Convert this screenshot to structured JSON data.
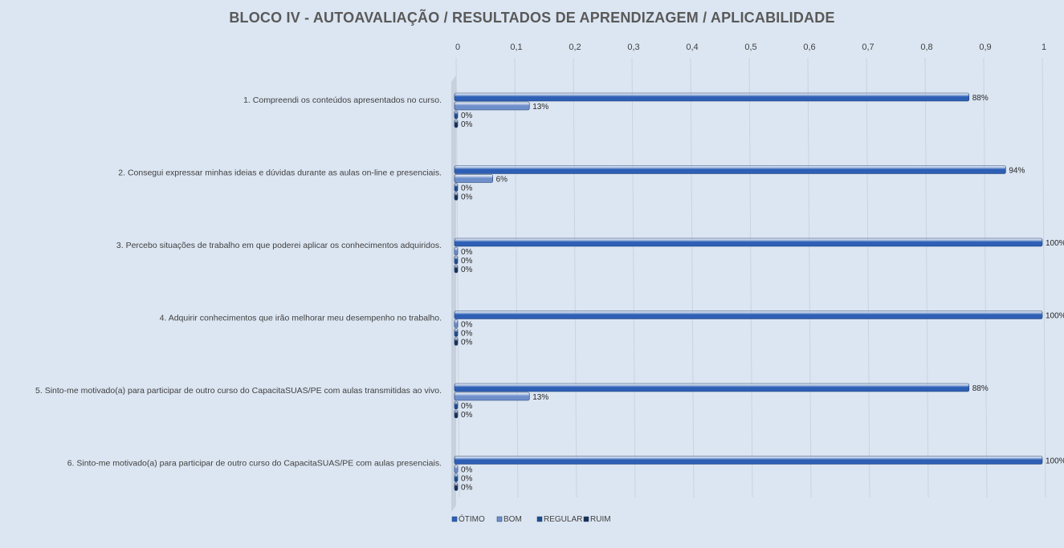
{
  "chart_data": {
    "type": "bar",
    "orientation": "horizontal",
    "title": "BLOCO IV - AUTOAVALIAÇÃO / RESULTADOS  DE APRENDIZAGEM / APLICABILIDADE",
    "xlim": [
      0,
      1
    ],
    "x_ticks": [
      "0",
      "0,1",
      "0,2",
      "0,3",
      "0,4",
      "0,5",
      "0,6",
      "0,7",
      "0,8",
      "0,9",
      "1"
    ],
    "x_axis_position": "top",
    "grid": true,
    "legend_position": "bottom-left",
    "categories": [
      "1. Compreendi os conteúdos apresentados no curso.",
      "2. Consegui expressar minhas ideias e dúvidas durante as aulas on-line e presenciais.",
      "3. Percebo situações de trabalho em que poderei aplicar os conhecimentos adquiridos.",
      "4. Adquirir conhecimentos que irão melhorar meu desempenho no trabalho.",
      "5. Sinto-me motivado(a) para participar de outro curso do CapacitaSUAS/PE com aulas transmitidas ao vivo.",
      "6. Sinto-me motivado(a) para participar de outro curso do CapacitaSUAS/PE com aulas presenciais."
    ],
    "series": [
      {
        "name": "ÓTIMO",
        "color": "#2e5fb5",
        "values": [
          0.875,
          0.9375,
          1.0,
          1.0,
          0.875,
          1.0
        ],
        "labels": [
          "88%",
          "94%",
          "100%",
          "100%",
          "88%",
          "100%"
        ]
      },
      {
        "name": "BOM",
        "color": "#6f8fcb",
        "values": [
          0.125,
          0.0625,
          0,
          0,
          0.125,
          0
        ],
        "labels": [
          "13%",
          "6%",
          "0%",
          "0%",
          "13%",
          "0%"
        ]
      },
      {
        "name": "REGULAR",
        "color": "#1f4e8f",
        "values": [
          0,
          0,
          0,
          0,
          0,
          0
        ],
        "labels": [
          "0%",
          "0%",
          "0%",
          "0%",
          "0%",
          "0%"
        ]
      },
      {
        "name": "RUIM",
        "color": "#1a2f52",
        "values": [
          0,
          0,
          0,
          0,
          0,
          0
        ],
        "labels": [
          "0%",
          "0%",
          "0%",
          "0%",
          "0%",
          "0%"
        ]
      }
    ]
  }
}
